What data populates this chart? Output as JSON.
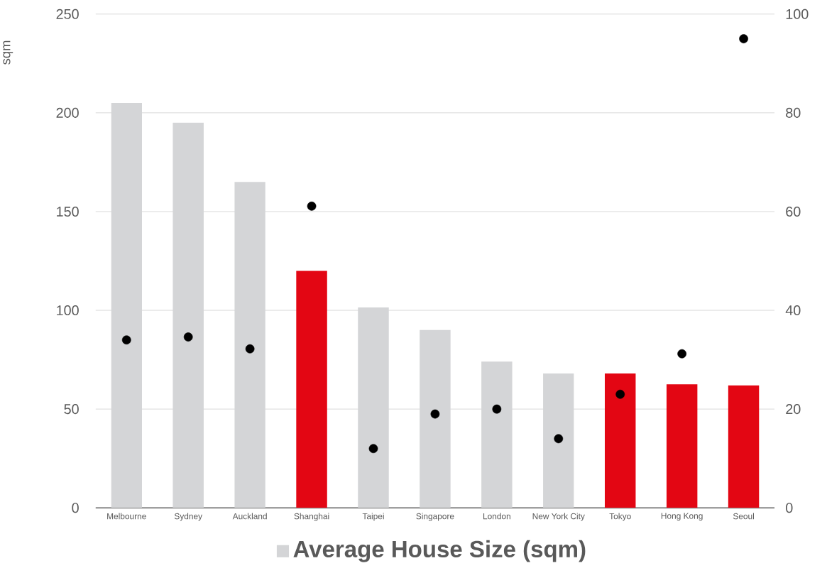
{
  "chart_data": {
    "type": "bar",
    "ylabel": "sqm",
    "categories": [
      "Melbourne",
      "Sydney",
      "Auckland",
      "Shanghai",
      "Taipei",
      "Singapore",
      "London",
      "New York City",
      "Tokyo",
      "Hong Kong",
      "Seoul"
    ],
    "series": [
      {
        "name": "Average House Size (sqm)",
        "color": "#d4d5d7",
        "colors": [
          "#d4d5d7",
          "#d4d5d7",
          "#d4d5d7",
          "#e30613",
          "#d4d5d7",
          "#d4d5d7",
          "#d4d5d7",
          "#d4d5d7",
          "#e30613",
          "#e30613",
          "#e30613"
        ],
        "values": [
          205,
          195,
          165,
          120,
          101.5,
          90,
          74,
          68,
          68,
          62.5,
          62
        ]
      },
      {
        "type": "scatter",
        "axis": "y2",
        "color": "#000000",
        "marker": "circle",
        "values": [
          34,
          34.6,
          32.2,
          61.1,
          12,
          19,
          20,
          14,
          23,
          31.2,
          95
        ]
      }
    ],
    "ylim": [
      0,
      250
    ],
    "yticks": [
      0,
      50,
      100,
      150,
      200,
      250
    ],
    "y2lim": [
      0,
      100
    ],
    "y2ticks": [
      0,
      20,
      40,
      60,
      80,
      100
    ],
    "grid": "y",
    "legend": "bottom"
  }
}
